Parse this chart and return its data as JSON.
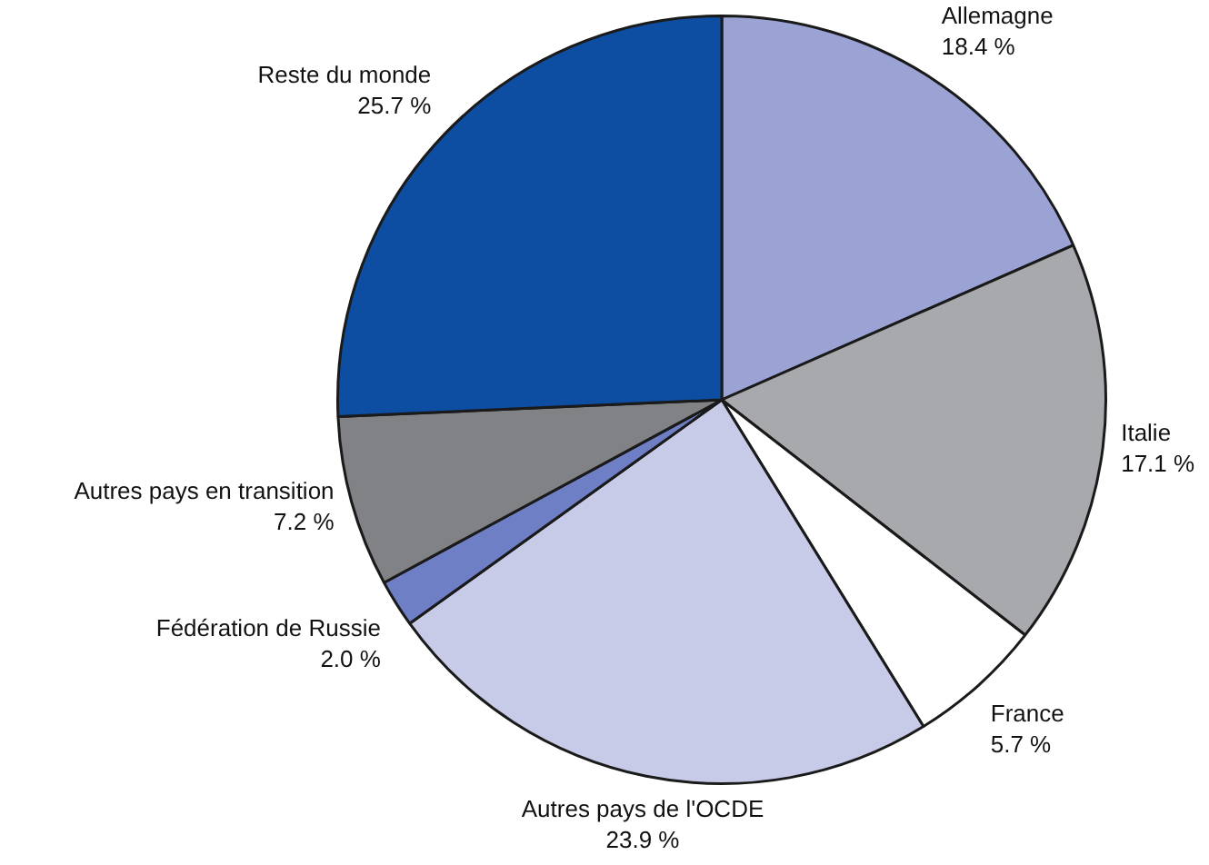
{
  "chart_data": {
    "type": "pie",
    "categories": [
      "Allemagne",
      "Italie",
      "France",
      "Autres pays de l'OCDE",
      "Fédération de Russie",
      "Autres pays en transition",
      "Reste du monde"
    ],
    "values": [
      18.4,
      17.1,
      5.7,
      23.9,
      2.0,
      7.2,
      25.7
    ],
    "value_labels": [
      "18.4 %",
      "17.1 %",
      "5.7 %",
      "23.9 %",
      "2.0 %",
      "7.2 %",
      "25.7 %"
    ],
    "colors": [
      "#9aa3d4",
      "#a7a9ac",
      "#ffffff",
      "#c8cbe8",
      "#6f7fc6",
      "#808285",
      "#0d4ea3"
    ],
    "legend": false
  }
}
